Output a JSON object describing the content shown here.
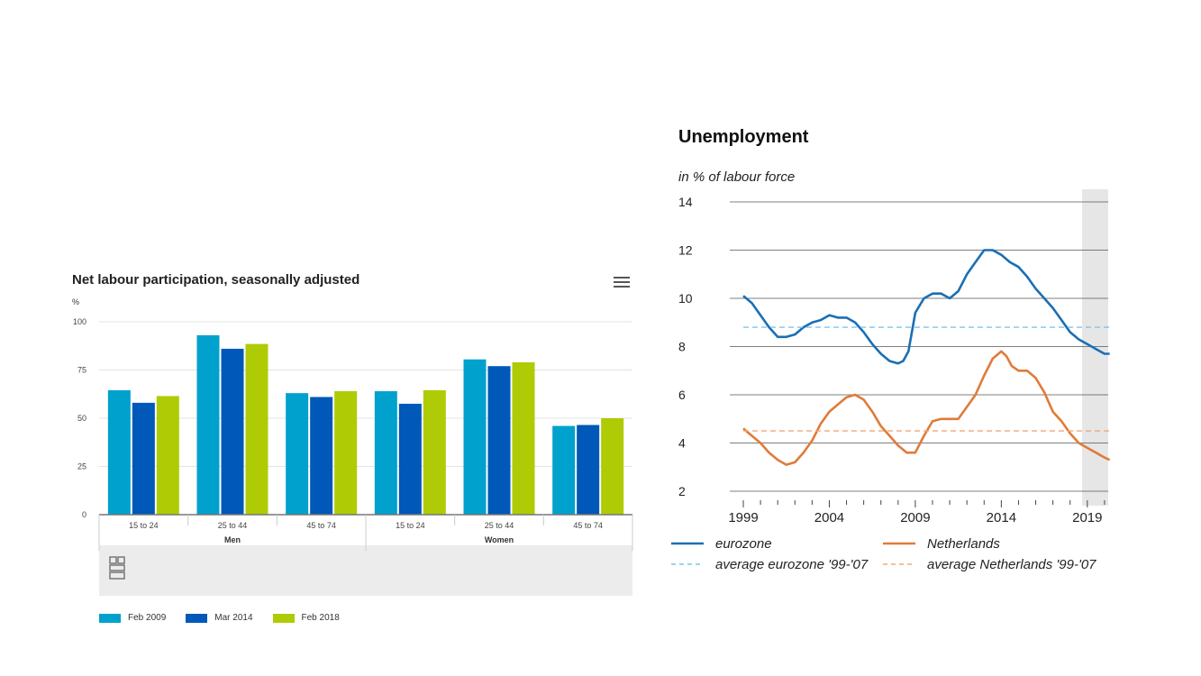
{
  "left_chart": {
    "title": "Net labour participation, seasonally adjusted",
    "unit": "%",
    "menu_icon": "hamburger-menu-icon",
    "logo_icon": "cbs-logo-icon"
  },
  "right_chart": {
    "title": "Unemployment",
    "subtitle": "in % of labour force"
  },
  "chart_data": [
    {
      "type": "bar",
      "title": "Net labour participation, seasonally adjusted",
      "ylabel": "%",
      "ylim": [
        0,
        100
      ],
      "yticks": [
        0,
        25,
        50,
        75,
        100
      ],
      "grid": true,
      "legend_placement": "bottom",
      "categories": [
        "15 to 24",
        "25 to 44",
        "45 to 74",
        "15 to 24",
        "25 to 44",
        "45 to 74"
      ],
      "groups": [
        {
          "label": "Men",
          "categories": [
            "15 to 24",
            "25 to 44",
            "45 to 74"
          ]
        },
        {
          "label": "Women",
          "categories": [
            "15 to 24",
            "25 to 44",
            "45 to 74"
          ]
        }
      ],
      "series": [
        {
          "name": "Feb 2009",
          "color": "#00a1cd",
          "values": [
            64.5,
            93,
            63,
            64,
            80.5,
            46
          ]
        },
        {
          "name": "Mar 2014",
          "color": "#0058b8",
          "values": [
            58,
            86,
            61,
            57.5,
            77,
            46.5
          ]
        },
        {
          "name": "Feb 2018",
          "color": "#afcb05",
          "values": [
            61.5,
            88.5,
            64,
            64.5,
            79,
            50
          ]
        }
      ]
    },
    {
      "type": "line",
      "title": "Unemployment",
      "ylabel": "in % of labour force",
      "ylim": [
        2,
        14
      ],
      "yticks": [
        2,
        4,
        6,
        8,
        10,
        12,
        14
      ],
      "xlim": [
        1999,
        2021
      ],
      "xticks": [
        1999,
        2004,
        2009,
        2014,
        2019
      ],
      "shaded_region": [
        2018.7,
        2021
      ],
      "grid": true,
      "legend_placement": "bottom",
      "series": [
        {
          "name": "eurozone",
          "color": "#1a6fb5",
          "style": "solid",
          "x": [
            1999,
            1999.5,
            2000,
            2000.5,
            2001,
            2001.5,
            2002,
            2002.5,
            2003,
            2003.5,
            2004,
            2004.5,
            2005,
            2005.5,
            2006,
            2006.5,
            2007,
            2007.5,
            2008,
            2008.3,
            2008.6,
            2009,
            2009.5,
            2010,
            2010.5,
            2011,
            2011.5,
            2012,
            2012.5,
            2013,
            2013.5,
            2014,
            2014.5,
            2015,
            2015.5,
            2016,
            2016.5,
            2017,
            2017.5,
            2018,
            2018.5,
            2019,
            2019.5,
            2020,
            2020.3
          ],
          "values": [
            10.1,
            9.8,
            9.3,
            8.8,
            8.4,
            8.4,
            8.5,
            8.8,
            9.0,
            9.1,
            9.3,
            9.2,
            9.2,
            9.0,
            8.6,
            8.1,
            7.7,
            7.4,
            7.3,
            7.4,
            7.8,
            9.4,
            10.0,
            10.2,
            10.2,
            10.0,
            10.3,
            11.0,
            11.5,
            12.0,
            12.0,
            11.8,
            11.5,
            11.3,
            10.9,
            10.4,
            10.0,
            9.6,
            9.1,
            8.6,
            8.3,
            8.1,
            7.9,
            7.7,
            7.7
          ]
        },
        {
          "name": "Netherlands",
          "color": "#e07b39",
          "style": "solid",
          "x": [
            1999,
            1999.5,
            2000,
            2000.5,
            2001,
            2001.5,
            2002,
            2002.5,
            2003,
            2003.5,
            2004,
            2004.5,
            2005,
            2005.5,
            2006,
            2006.5,
            2007,
            2007.5,
            2008,
            2008.5,
            2009,
            2009.5,
            2010,
            2010.5,
            2011,
            2011.5,
            2012,
            2012.5,
            2013,
            2013.5,
            2014,
            2014.3,
            2014.6,
            2015,
            2015.5,
            2016,
            2016.5,
            2017,
            2017.5,
            2018,
            2018.5,
            2019,
            2019.5,
            2020,
            2020.3
          ],
          "values": [
            4.6,
            4.3,
            4.0,
            3.6,
            3.3,
            3.1,
            3.2,
            3.6,
            4.1,
            4.8,
            5.3,
            5.6,
            5.9,
            6.0,
            5.8,
            5.3,
            4.7,
            4.3,
            3.9,
            3.6,
            3.6,
            4.3,
            4.9,
            5.0,
            5.0,
            5.0,
            5.5,
            6.0,
            6.8,
            7.5,
            7.8,
            7.6,
            7.2,
            7.0,
            7.0,
            6.7,
            6.1,
            5.3,
            4.9,
            4.4,
            4.0,
            3.8,
            3.6,
            3.4,
            3.3
          ]
        },
        {
          "name": "average eurozone '99-'07",
          "color": "#7ec3ea",
          "style": "dashed",
          "x": [
            1999,
            2020.3
          ],
          "values": [
            8.8,
            8.8
          ]
        },
        {
          "name": "average Netherlands '99-'07",
          "color": "#f0a878",
          "style": "dashed",
          "x": [
            1999,
            2020.3
          ],
          "values": [
            4.5,
            4.5
          ]
        }
      ]
    }
  ]
}
